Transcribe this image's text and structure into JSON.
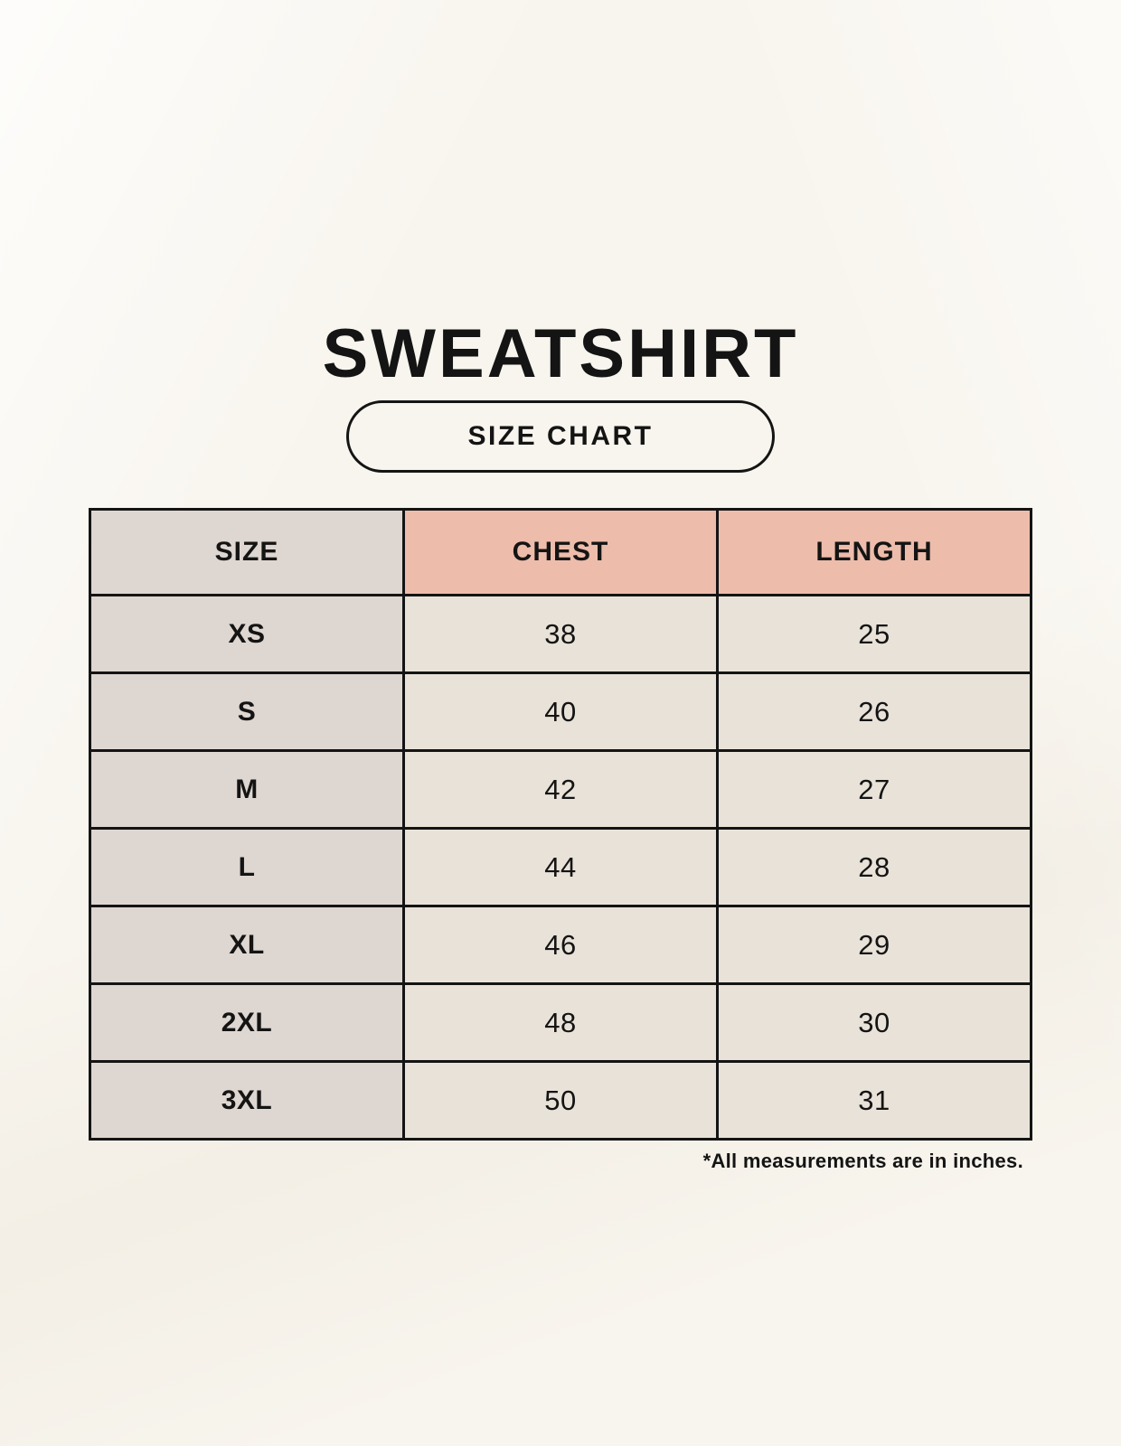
{
  "page": {
    "title": "SWEATSHIRT",
    "badge_label": "SIZE CHART",
    "footnote": "*All measurements are in inches."
  },
  "chart_data": {
    "type": "table",
    "title": "SWEATSHIRT",
    "subtitle": "SIZE CHART",
    "columns": [
      "SIZE",
      "CHEST",
      "LENGTH"
    ],
    "rows": [
      [
        "XS",
        "38",
        "25"
      ],
      [
        "S",
        "40",
        "26"
      ],
      [
        "M",
        "42",
        "27"
      ],
      [
        "L",
        "44",
        "28"
      ],
      [
        "XL",
        "46",
        "29"
      ],
      [
        "2XL",
        "48",
        "30"
      ],
      [
        "3XL",
        "50",
        "31"
      ]
    ],
    "units_note": "*All measurements are in inches.",
    "layout": {
      "header_row_accent_columns": [
        "CHEST",
        "LENGTH"
      ],
      "size_column_shaded": true,
      "grid": true
    }
  },
  "colors": {
    "page_background": "#f8f5ee",
    "table_border": "#141414",
    "size_column_bg": "#ded6d0",
    "header_accent_bg": "#eebcab",
    "value_cell_bg": "#e9e2d8",
    "text": "#141414"
  }
}
